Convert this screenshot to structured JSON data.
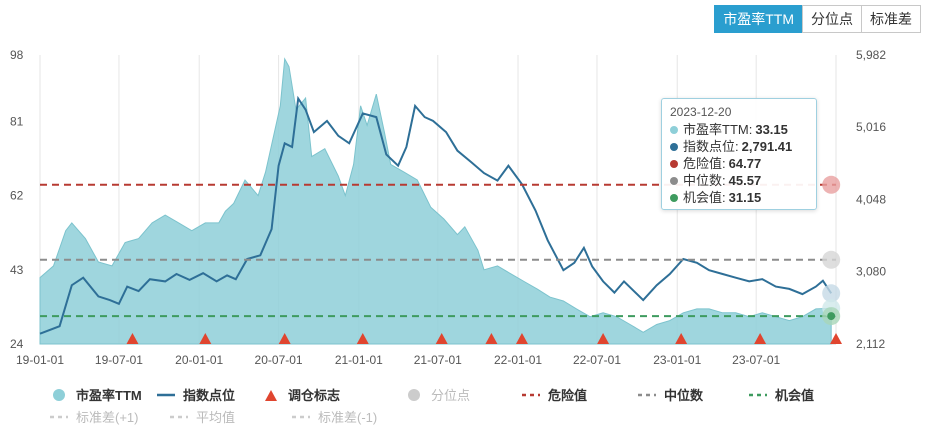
{
  "tabs": [
    {
      "label": "市盈率TTM",
      "active": true
    },
    {
      "label": "分位点",
      "active": false
    },
    {
      "label": "标准差",
      "active": false
    }
  ],
  "tooltip": {
    "date": "2023-12-20",
    "rows": [
      {
        "label": "市盈率TTM",
        "value": "33.15",
        "color": "#8ecfd8"
      },
      {
        "label": "指数点位",
        "value": "2,791.41",
        "color": "#2e6f97"
      },
      {
        "label": "危险值",
        "value": "64.77",
        "color": "#b73a32"
      },
      {
        "label": "中位数",
        "value": "45.57",
        "color": "#8c8c8c"
      },
      {
        "label": "机会值",
        "value": "31.15",
        "color": "#3e9b5f"
      }
    ]
  },
  "legend": [
    {
      "label": "市盈率TTM",
      "kind": "dot",
      "color": "#8ecfd8",
      "active": true
    },
    {
      "label": "指数点位",
      "kind": "line",
      "color": "#2e6f97",
      "active": true
    },
    {
      "label": "调仓标志",
      "kind": "triangle",
      "color": "#e0452f",
      "active": true
    },
    {
      "label": "分位点",
      "kind": "dot",
      "color": "#cccccc",
      "active": false
    },
    {
      "label": "危险值",
      "kind": "dash",
      "color": "#b73a32",
      "active": true
    },
    {
      "label": "中位数",
      "kind": "dash",
      "color": "#8c8c8c",
      "active": true
    },
    {
      "label": "机会值",
      "kind": "dash",
      "color": "#3e9b5f",
      "active": true
    },
    {
      "label": "标准差(+1)",
      "kind": "dash",
      "color": "#cccccc",
      "active": false
    },
    {
      "label": "平均值",
      "kind": "dash",
      "color": "#cccccc",
      "active": false
    },
    {
      "label": "标准差(-1)",
      "kind": "dash",
      "color": "#cccccc",
      "active": false
    }
  ],
  "chart_data": {
    "type": "area",
    "x_ticks": [
      "19-01-01",
      "19-07-01",
      "20-01-01",
      "20-07-01",
      "21-01-01",
      "21-07-01",
      "22-01-01",
      "22-07-01",
      "23-01-01",
      "23-07-01"
    ],
    "x_range": [
      "2019-01-01",
      "2023-12-31"
    ],
    "y_left": {
      "ticks": [
        "98",
        "81",
        "62",
        "43",
        "24"
      ],
      "range": [
        24,
        98
      ]
    },
    "y_right": {
      "ticks": [
        "5,982",
        "5,016",
        "4,048",
        "3,080",
        "2,112"
      ],
      "range": [
        2112,
        5982
      ]
    },
    "grid": "vertical",
    "legend_position": "bottom",
    "reference_lines": [
      {
        "name": "危险值",
        "value": 64.77,
        "color": "#b73a32"
      },
      {
        "name": "中位数",
        "value": 45.57,
        "color": "#8c8c8c"
      },
      {
        "name": "机会值",
        "value": 31.15,
        "color": "#3e9b5f"
      }
    ],
    "series": [
      {
        "name": "市盈率TTM",
        "color": "#8ecfd8",
        "points": [
          [
            "2019-01-01",
            41
          ],
          [
            "2019-02-01",
            44
          ],
          [
            "2019-03-01",
            53
          ],
          [
            "2019-03-15",
            55
          ],
          [
            "2019-04-15",
            51
          ],
          [
            "2019-05-15",
            45
          ],
          [
            "2019-06-15",
            44
          ],
          [
            "2019-07-15",
            50
          ],
          [
            "2019-08-15",
            51
          ],
          [
            "2019-09-15",
            55
          ],
          [
            "2019-10-15",
            57
          ],
          [
            "2019-11-15",
            55
          ],
          [
            "2019-12-15",
            53
          ],
          [
            "2020-01-15",
            55
          ],
          [
            "2020-02-15",
            55
          ],
          [
            "2020-03-01",
            58
          ],
          [
            "2020-03-20",
            60
          ],
          [
            "2020-04-15",
            66
          ],
          [
            "2020-05-15",
            62
          ],
          [
            "2020-06-01",
            68
          ],
          [
            "2020-06-15",
            75
          ],
          [
            "2020-07-05",
            85
          ],
          [
            "2020-07-15",
            97
          ],
          [
            "2020-07-25",
            95
          ],
          [
            "2020-08-10",
            84
          ],
          [
            "2020-09-01",
            87
          ],
          [
            "2020-09-15",
            72
          ],
          [
            "2020-10-15",
            74
          ],
          [
            "2020-11-15",
            67
          ],
          [
            "2020-12-01",
            62
          ],
          [
            "2020-12-20",
            70
          ],
          [
            "2021-01-05",
            85
          ],
          [
            "2021-01-20",
            80
          ],
          [
            "2021-02-10",
            88
          ],
          [
            "2021-03-01",
            78
          ],
          [
            "2021-03-15",
            70
          ],
          [
            "2021-04-15",
            68
          ],
          [
            "2021-05-15",
            66
          ],
          [
            "2021-06-15",
            59
          ],
          [
            "2021-07-15",
            56
          ],
          [
            "2021-08-15",
            52
          ],
          [
            "2021-09-01",
            54
          ],
          [
            "2021-10-01",
            48
          ],
          [
            "2021-10-15",
            43
          ],
          [
            "2021-11-15",
            44
          ],
          [
            "2021-12-15",
            42
          ],
          [
            "2022-01-15",
            40
          ],
          [
            "2022-02-15",
            38
          ],
          [
            "2022-03-15",
            36
          ],
          [
            "2022-04-15",
            35
          ],
          [
            "2022-05-15",
            33
          ],
          [
            "2022-06-15",
            31
          ],
          [
            "2022-07-15",
            32
          ],
          [
            "2022-08-15",
            31
          ],
          [
            "2022-09-15",
            29
          ],
          [
            "2022-10-15",
            27
          ],
          [
            "2022-11-15",
            29
          ],
          [
            "2022-12-15",
            30
          ],
          [
            "2023-01-15",
            32
          ],
          [
            "2023-02-15",
            33
          ],
          [
            "2023-03-15",
            33
          ],
          [
            "2023-04-15",
            32
          ],
          [
            "2023-05-15",
            32
          ],
          [
            "2023-06-15",
            31
          ],
          [
            "2023-07-15",
            32
          ],
          [
            "2023-08-15",
            31
          ],
          [
            "2023-09-15",
            30
          ],
          [
            "2023-10-15",
            31
          ],
          [
            "2023-11-15",
            33
          ],
          [
            "2023-12-20",
            33.15
          ]
        ]
      },
      {
        "name": "指数点位",
        "color": "#2e6f97",
        "points": [
          [
            "2019-01-01",
            2250
          ],
          [
            "2019-02-15",
            2350
          ],
          [
            "2019-03-15",
            2900
          ],
          [
            "2019-04-10",
            3000
          ],
          [
            "2019-05-15",
            2750
          ],
          [
            "2019-06-10",
            2700
          ],
          [
            "2019-07-01",
            2650
          ],
          [
            "2019-07-20",
            2880
          ],
          [
            "2019-08-15",
            2820
          ],
          [
            "2019-09-10",
            2980
          ],
          [
            "2019-10-15",
            2950
          ],
          [
            "2019-11-10",
            3050
          ],
          [
            "2019-12-10",
            2970
          ],
          [
            "2020-01-10",
            3060
          ],
          [
            "2020-02-10",
            2950
          ],
          [
            "2020-03-05",
            3030
          ],
          [
            "2020-03-25",
            2980
          ],
          [
            "2020-04-20",
            3250
          ],
          [
            "2020-05-20",
            3300
          ],
          [
            "2020-06-15",
            3650
          ],
          [
            "2020-07-01",
            4500
          ],
          [
            "2020-07-15",
            4800
          ],
          [
            "2020-08-01",
            4750
          ],
          [
            "2020-08-15",
            5400
          ],
          [
            "2020-09-01",
            5250
          ],
          [
            "2020-09-20",
            4950
          ],
          [
            "2020-10-20",
            5100
          ],
          [
            "2020-11-15",
            4900
          ],
          [
            "2020-12-10",
            4800
          ],
          [
            "2021-01-10",
            5200
          ],
          [
            "2021-02-10",
            5150
          ],
          [
            "2021-03-05",
            4650
          ],
          [
            "2021-04-01",
            4500
          ],
          [
            "2021-04-20",
            4750
          ],
          [
            "2021-05-10",
            5300
          ],
          [
            "2021-06-01",
            5150
          ],
          [
            "2021-06-20",
            5100
          ],
          [
            "2021-07-20",
            4950
          ],
          [
            "2021-08-15",
            4700
          ],
          [
            "2021-09-15",
            4550
          ],
          [
            "2021-10-15",
            4400
          ],
          [
            "2021-11-15",
            4300
          ],
          [
            "2021-12-10",
            4500
          ],
          [
            "2022-01-10",
            4250
          ],
          [
            "2022-02-10",
            3900
          ],
          [
            "2022-03-10",
            3500
          ],
          [
            "2022-04-15",
            3100
          ],
          [
            "2022-05-10",
            3200
          ],
          [
            "2022-06-01",
            3400
          ],
          [
            "2022-06-20",
            3150
          ],
          [
            "2022-07-15",
            2950
          ],
          [
            "2022-08-10",
            2800
          ],
          [
            "2022-09-01",
            2950
          ],
          [
            "2022-10-15",
            2700
          ],
          [
            "2022-11-15",
            2900
          ],
          [
            "2022-12-15",
            3050
          ],
          [
            "2023-01-15",
            3250
          ],
          [
            "2023-02-15",
            3200
          ],
          [
            "2023-03-15",
            3100
          ],
          [
            "2023-04-15",
            3050
          ],
          [
            "2023-05-15",
            3000
          ],
          [
            "2023-06-15",
            2950
          ],
          [
            "2023-07-15",
            2980
          ],
          [
            "2023-08-15",
            2880
          ],
          [
            "2023-09-15",
            2850
          ],
          [
            "2023-10-15",
            2780
          ],
          [
            "2023-11-15",
            2880
          ],
          [
            "2023-12-01",
            2960
          ],
          [
            "2023-12-20",
            2791.41
          ]
        ]
      }
    ],
    "rebalance_markers": [
      "2019-08-01",
      "2020-01-15",
      "2020-07-15",
      "2021-01-10",
      "2021-07-10",
      "2021-11-01",
      "2022-01-10",
      "2022-07-15",
      "2023-01-10",
      "2023-07-10",
      "2023-12-31"
    ]
  }
}
